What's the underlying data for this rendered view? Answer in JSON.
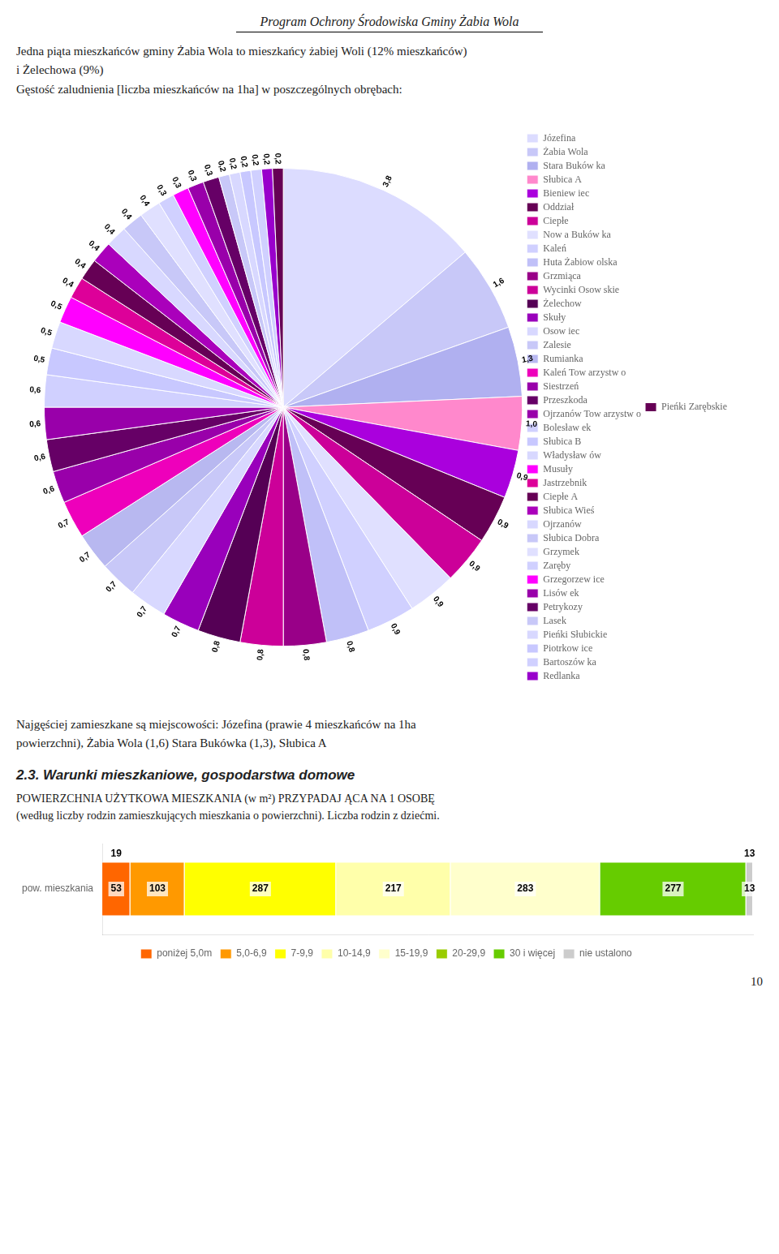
{
  "chart_data": [
    {
      "type": "pie",
      "title": "Program Ochrony Środowiska Gminy Żabia Wola",
      "annotations": [
        "Jedna piąta mieszkańców gminy Żabia Wola to mieszkańcy żabiej Woli (12% mieszkańców)",
        "i Żelechowa (9%)",
        "Gęstość zaludnienia [liczba mieszkańców na 1ha] w poszczególnych obrębach:",
        "Najgęściej zamieszkane są miejscowości: Józefina (prawie 4 mieszkańców na 1ha",
        "powierzchni), Żabia Wola (1,6) Stara Bukówka (1,3), Słubica A",
        "10"
      ],
      "categories": [
        "Józefina",
        "Żabia Wola",
        "Stara Buków ka",
        "Słubica A",
        "Bieniew iec",
        "Oddział",
        "Ciepłe",
        "Now a Buków ka",
        "Kaleń",
        "Huta Żabiow olska",
        "Grzmiąca",
        "Wycinki Osow skie",
        "Żelechow",
        "Skuły",
        "Osow iec",
        "Zalesie",
        "Rumianka",
        "Kaleń Tow arzystw o",
        "Siestrzeń",
        "Przeszkoda",
        "Ojrzanów Tow arzystw o",
        "Bolesław ek",
        "Słubica B",
        "Władysław ów",
        "Musuły",
        "Jastrzebnik",
        "Ciepłe A",
        "Słubica Wieś",
        "Ojrzanów",
        "Słubica Dobra",
        "Grzymek",
        "Zaręby",
        "Grzegorzew ice",
        "Lisów ek",
        "Petrykozy",
        "Lasek",
        "Pieńki Słubickie",
        "Piotrkow ice",
        "Bartoszów ka",
        "Redlanka",
        "Pieńki Zarębskie"
      ],
      "values": [
        3.8,
        1.6,
        1.3,
        1.0,
        0.9,
        0.9,
        0.9,
        0.9,
        0.9,
        0.8,
        0.8,
        0.8,
        0.8,
        0.7,
        0.7,
        0.7,
        0.7,
        0.7,
        0.6,
        0.6,
        0.6,
        0.6,
        0.5,
        0.5,
        0.5,
        0.4,
        0.4,
        0.4,
        0.4,
        0.4,
        0.4,
        0.3,
        0.3,
        0.3,
        0.3,
        0.2,
        0.2,
        0.2,
        0.2,
        0.2,
        0.2
      ],
      "value_labels": [
        "3,8",
        "1,6",
        "1,3",
        "1,0",
        "0,9",
        "0,9",
        "0,9",
        "0,9",
        "0,9",
        "0,8",
        "0,8",
        "0,8",
        "0,8",
        "0,7",
        "0,7",
        "0,7",
        "0,7",
        "0,7",
        "0,6",
        "0,6",
        "0,6",
        "0,6",
        "0,5",
        "0,5",
        "0,5",
        "0,4",
        "0,4",
        "0,4",
        "0,4",
        "0,4",
        "0,4",
        "0,3",
        "0,3",
        "0,3",
        "0,3",
        "0,2",
        "0,2",
        "0,2",
        "0,2",
        "0,2",
        "0,2"
      ],
      "colors": [
        "#DCDCFF",
        "#C8C8F8",
        "#B0B0F0",
        "#FF88CC",
        "#AA00DD",
        "#660055",
        "#CC0099",
        "#E0E0FF",
        "#D0D0FF",
        "#C0C0F8",
        "#990088",
        "#CC0099",
        "#550055",
        "#9900BB",
        "#D8D8FF",
        "#C8C8F8",
        "#B8B8F0",
        "#EE00BB",
        "#9900AA",
        "#660066",
        "#9900AA",
        "#D0D0FF",
        "#C8C8FF",
        "#D8D8FF",
        "#FF00FF",
        "#DD0099",
        "#660055",
        "#AA00BB",
        "#D8D8FF",
        "#C8C8F8",
        "#E0E0FF",
        "#D0D0FF",
        "#FF00FF",
        "#9900AA",
        "#660066",
        "#C8C8F8",
        "#D8D8FF",
        "#C8C8FF",
        "#D0D0FF",
        "#9900CC",
        "#660055"
      ],
      "data_labels": true,
      "legend": "right"
    },
    {
      "type": "bar",
      "orientation": "horizontal",
      "stacked": true,
      "title": "2.3. Warunki mieszkaniowe, gospodarstwa domowe",
      "subtitle": [
        "POWIERZCHNIA UŻYTKOWA MIESZKANIA (w m²) PRZYPADAJ ĄCA NA 1 OSOBĘ",
        "(według liczby rodzin zamieszkujących mieszkania o powierzchni). Liczba rodzin z dziećmi."
      ],
      "annotations": [
        "19",
        "13"
      ],
      "categories": [
        "pow. mieszkania"
      ],
      "series": [
        {
          "name": "poniżej 5,0m",
          "color": "#FF6600",
          "values": [
            53
          ]
        },
        {
          "name": "5,0-6,9",
          "color": "#FF9900",
          "values": [
            103
          ]
        },
        {
          "name": "7-9,9",
          "color": "#FFFF00",
          "values": [
            287
          ]
        },
        {
          "name": "10-14,9",
          "color": "#FFFFAA",
          "values": [
            217
          ]
        },
        {
          "name": "15-19,9",
          "color": "#FFFFCC",
          "values": [
            283
          ]
        },
        {
          "name": "20-29,9",
          "color": "#99CC00",
          "values": [
            null
          ]
        },
        {
          "name": "30 i więcej",
          "color": "#66CC00",
          "values": [
            277
          ]
        },
        {
          "name": "nie ustalono",
          "color": "#CCCCCC",
          "values": [
            13
          ]
        }
      ],
      "xlim": [
        0,
        1233
      ],
      "tick_labels": "y",
      "grid": false,
      "data_labels": true,
      "legend": "bottom"
    }
  ]
}
